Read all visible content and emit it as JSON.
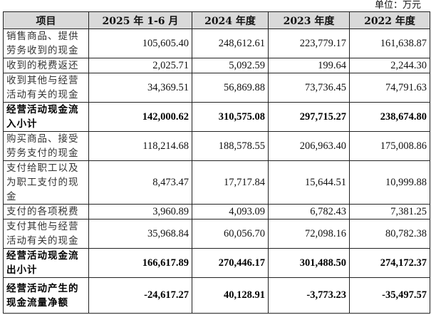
{
  "unit_label": "单位：万元",
  "headers": [
    "项目",
    "2025 年 1-6 月",
    "2024 年度",
    "2023 年度",
    "2022 年度"
  ],
  "rows": [
    {
      "label": "销售商品、提供劳务收到的现金",
      "values": [
        "105,605.40",
        "248,612.61",
        "223,779.17",
        "161,638.87"
      ],
      "bold": false
    },
    {
      "label": "收到的税费返还",
      "values": [
        "2,025.71",
        "5,092.59",
        "199.64",
        "2,244.30"
      ],
      "bold": false
    },
    {
      "label": "收到其他与经营活动有关的现金",
      "values": [
        "34,369.51",
        "56,869.88",
        "73,736.45",
        "74,791.63"
      ],
      "bold": false
    },
    {
      "label": "经营活动现金流入小计",
      "values": [
        "142,000.62",
        "310,575.08",
        "297,715.27",
        "238,674.80"
      ],
      "bold": true
    },
    {
      "label": "购买商品、接受劳务支付的现金",
      "values": [
        "118,214.68",
        "188,578.55",
        "206,963.40",
        "175,008.86"
      ],
      "bold": false
    },
    {
      "label": "支付给职工以及为职工支付的现金",
      "values": [
        "8,473.47",
        "17,717.84",
        "15,644.51",
        "10,999.88"
      ],
      "bold": false
    },
    {
      "label": "支付的各项税费",
      "values": [
        "3,960.89",
        "4,093.09",
        "6,782.43",
        "7,381.25"
      ],
      "bold": false
    },
    {
      "label": "支付其他与经营活动有关的现金",
      "values": [
        "35,968.84",
        "60,056.70",
        "72,098.16",
        "80,782.38"
      ],
      "bold": false
    },
    {
      "label": "经营活动现金流出小计",
      "values": [
        "166,617.89",
        "270,446.17",
        "301,488.50",
        "274,172.37"
      ],
      "bold": true
    },
    {
      "label": "经营活动产生的现金流量净额",
      "values": [
        "-24,617.27",
        "40,128.91",
        "-3,773.23",
        "-35,497.57"
      ],
      "bold": true
    }
  ]
}
